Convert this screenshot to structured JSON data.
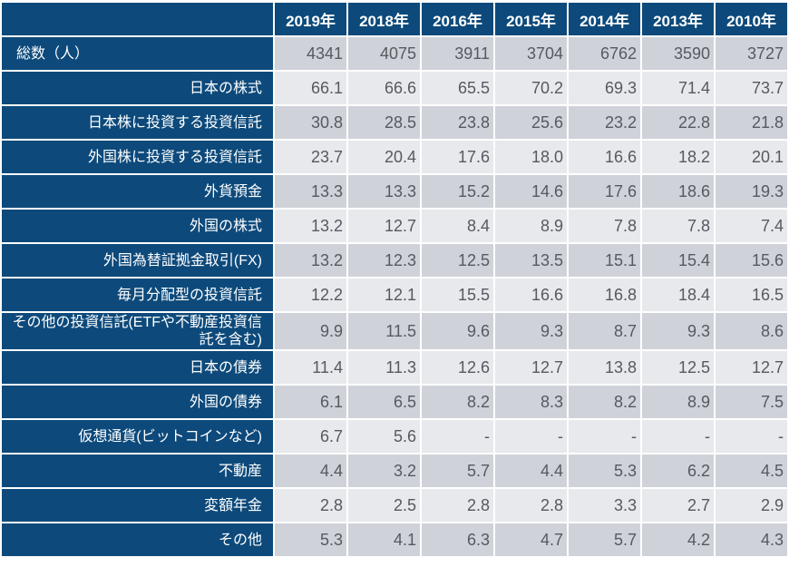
{
  "chart_data": {
    "type": "table",
    "columns": [
      "2019年",
      "2018年",
      "2016年",
      "2015年",
      "2014年",
      "2013年",
      "2010年"
    ],
    "rows": [
      {
        "label": "総数（人）",
        "values": [
          "4341",
          "4075",
          "3911",
          "3704",
          "6762",
          "3590",
          "3727"
        ]
      },
      {
        "label": "日本の株式",
        "values": [
          "66.1",
          "66.6",
          "65.5",
          "70.2",
          "69.3",
          "71.4",
          "73.7"
        ]
      },
      {
        "label": "日本株に投資する投資信託",
        "values": [
          "30.8",
          "28.5",
          "23.8",
          "25.6",
          "23.2",
          "22.8",
          "21.8"
        ]
      },
      {
        "label": "外国株に投資する投資信託",
        "values": [
          "23.7",
          "20.4",
          "17.6",
          "18.0",
          "16.6",
          "18.2",
          "20.1"
        ]
      },
      {
        "label": "外貨預金",
        "values": [
          "13.3",
          "13.3",
          "15.2",
          "14.6",
          "17.6",
          "18.6",
          "19.3"
        ]
      },
      {
        "label": "外国の株式",
        "values": [
          "13.2",
          "12.7",
          "8.4",
          "8.9",
          "7.8",
          "7.8",
          "7.4"
        ]
      },
      {
        "label": "外国為替証拠金取引(FX)",
        "values": [
          "13.2",
          "12.3",
          "12.5",
          "13.5",
          "15.1",
          "15.4",
          "15.6"
        ]
      },
      {
        "label": "毎月分配型の投資信託",
        "values": [
          "12.2",
          "12.1",
          "15.5",
          "16.6",
          "16.8",
          "18.4",
          "16.5"
        ]
      },
      {
        "label": "その他の投資信託(ETFや不動産投資信託を含む)",
        "values": [
          "9.9",
          "11.5",
          "9.6",
          "9.3",
          "8.7",
          "9.3",
          "8.6"
        ]
      },
      {
        "label": "日本の債券",
        "values": [
          "11.4",
          "11.3",
          "12.6",
          "12.7",
          "13.8",
          "12.5",
          "12.7"
        ]
      },
      {
        "label": "外国の債券",
        "values": [
          "6.1",
          "6.5",
          "8.2",
          "8.3",
          "8.2",
          "8.9",
          "7.5"
        ]
      },
      {
        "label": "仮想通貨(ビットコインなど)",
        "values": [
          "6.7",
          "5.6",
          "-",
          "-",
          "-",
          "-",
          "-"
        ]
      },
      {
        "label": "不動産",
        "values": [
          "4.4",
          "3.2",
          "5.7",
          "4.4",
          "5.3",
          "6.2",
          "4.5"
        ]
      },
      {
        "label": "変額年金",
        "values": [
          "2.8",
          "2.5",
          "2.8",
          "2.8",
          "3.3",
          "2.7",
          "2.9"
        ]
      },
      {
        "label": "その他",
        "values": [
          "5.3",
          "4.1",
          "6.3",
          "4.7",
          "5.7",
          "4.2",
          "4.3"
        ]
      }
    ],
    "colors": {
      "header": "#0d4a7b",
      "row_dark": "#cfd3d9",
      "row_light": "#e7e9ec",
      "value_text": "#555a60"
    }
  }
}
